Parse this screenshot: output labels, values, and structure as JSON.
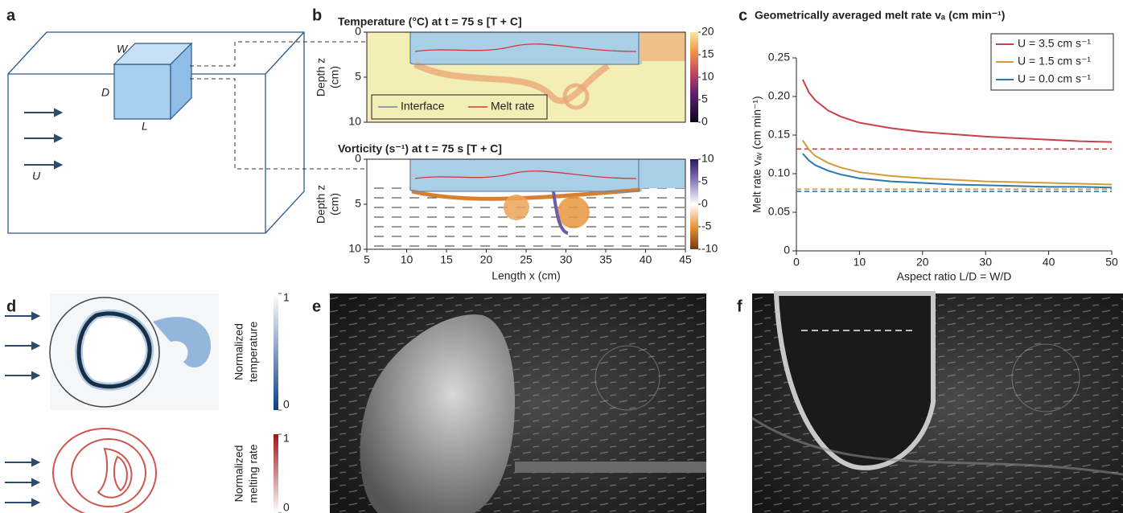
{
  "panel_labels": [
    "a",
    "b",
    "c",
    "d",
    "e",
    "f"
  ],
  "panel_a": {
    "labels": [
      "W",
      "D",
      "L",
      "U"
    ]
  },
  "panel_d": {
    "colorbars": [
      {
        "label_lines": [
          "Normalized",
          "temperature"
        ],
        "ticks": [
          0,
          1
        ]
      },
      {
        "label_lines": [
          "Normalized",
          "melting rate"
        ],
        "ticks": [
          0,
          1
        ]
      }
    ]
  },
  "chart_data": [
    {
      "type": "field",
      "title": "Temperature (°C) at t = 75 s [T + C]",
      "ylabel_lines": [
        "Depth z",
        "(cm)"
      ],
      "xlim": [
        5,
        45
      ],
      "ylim": [
        0,
        10
      ],
      "yticks": [
        0,
        5,
        10
      ],
      "clim": [
        0,
        20
      ],
      "cticks": [
        0,
        5,
        10,
        15,
        20
      ],
      "legend": [
        {
          "name": "Interface",
          "color": "#6f86a8"
        },
        {
          "name": "Melt rate",
          "color": "#d0393f"
        }
      ]
    },
    {
      "type": "field",
      "title": "Vorticity (s⁻¹) at t = 75 s [T + C]",
      "ylabel_lines": [
        "Depth z",
        "(cm)"
      ],
      "xlabel": "Length x (cm)",
      "xlim": [
        5,
        45
      ],
      "ylim": [
        0,
        10
      ],
      "yticks": [
        0,
        5,
        10
      ],
      "xticks": [
        5,
        10,
        15,
        20,
        25,
        30,
        35,
        40,
        45
      ],
      "clim": [
        -10,
        10
      ],
      "cticks": [
        -10,
        -5,
        0,
        5,
        10
      ]
    },
    {
      "type": "line",
      "title": "Geometrically averaged melt rate vₐ (cm min⁻¹)",
      "xlabel": "Aspect ratio L/D = W/D",
      "ylabel": "Melt rate vₐᵥ (cm min⁻¹)",
      "xlim": [
        0,
        50
      ],
      "ylim": [
        0,
        0.25
      ],
      "xticks": [
        0,
        10,
        20,
        30,
        40,
        50
      ],
      "yticks": [
        0,
        0.05,
        {
          "value": 0.1,
          "label": "0.10"
        },
        0.15,
        {
          "value": 0.2,
          "label": "0.20"
        },
        0.25
      ],
      "x": [
        1,
        2,
        3,
        5,
        7,
        10,
        15,
        20,
        25,
        30,
        35,
        40,
        45,
        50
      ],
      "series": [
        {
          "name": "U = 3.5 cm s⁻¹",
          "color": "#c9414a",
          "reference": 0.132,
          "values": [
            0.222,
            0.205,
            0.195,
            0.182,
            0.174,
            0.166,
            0.159,
            0.154,
            0.151,
            0.148,
            0.146,
            0.144,
            0.142,
            0.141
          ]
        },
        {
          "name": "U = 1.5 cm s⁻¹",
          "color": "#d39c3a",
          "reference": 0.08,
          "values": [
            0.143,
            0.131,
            0.123,
            0.114,
            0.108,
            0.102,
            0.097,
            0.094,
            0.092,
            0.09,
            0.089,
            0.088,
            0.087,
            0.086
          ]
        },
        {
          "name": "U = 0.0 cm s⁻¹",
          "color": "#2a78b0",
          "reference": 0.077,
          "values": [
            0.126,
            0.117,
            0.111,
            0.104,
            0.099,
            0.094,
            0.09,
            0.088,
            0.086,
            0.085,
            0.084,
            0.083,
            0.083,
            0.082
          ]
        }
      ]
    }
  ]
}
